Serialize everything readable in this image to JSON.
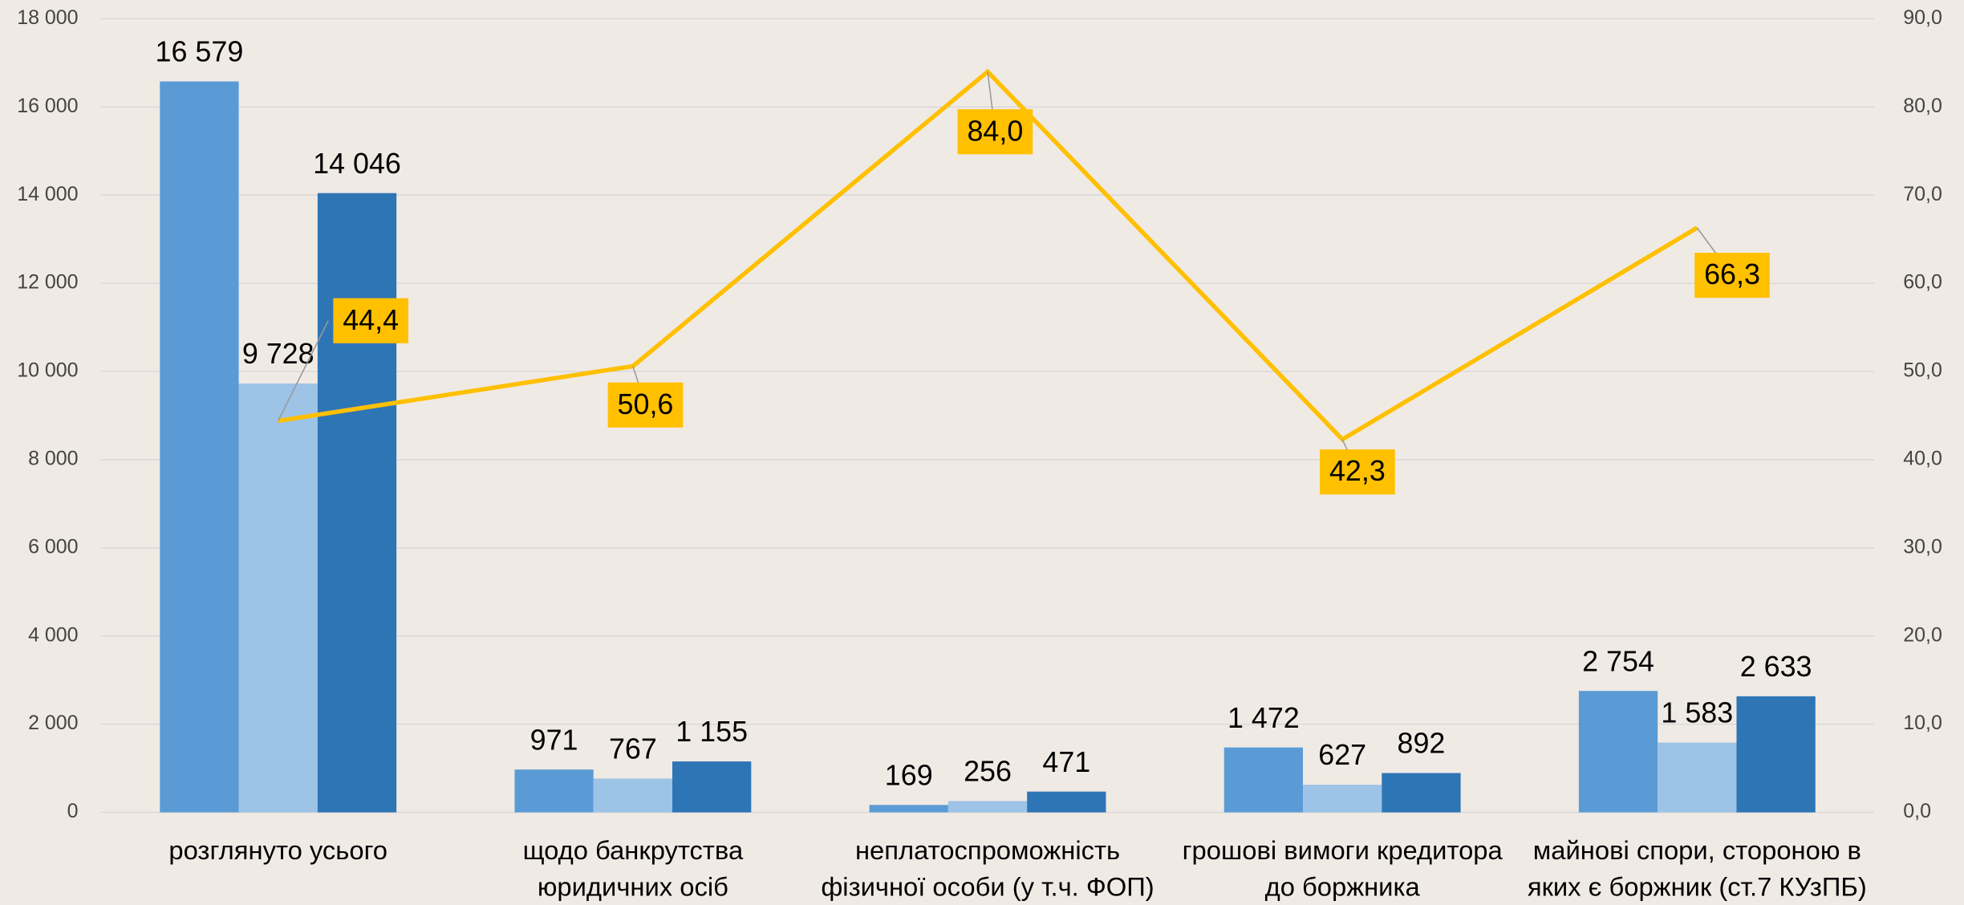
{
  "chart_data": {
    "type": "bar",
    "categories": [
      [
        "розглянуто усього"
      ],
      [
        "щодо банкрутства",
        "юридичних осіб"
      ],
      [
        "неплатоспроможність",
        "фізичної особи (у т.ч. ФОП)"
      ],
      [
        "грошові вимоги кредитора",
        "до боржника"
      ],
      [
        "майнові спори, стороною в",
        "яких є боржник (ст.7 КУзПБ)"
      ]
    ],
    "series": [
      {
        "color": "#5b9bd5",
        "values": [
          16579,
          971,
          169,
          1472,
          2754
        ],
        "value_labels": [
          "16 579",
          "971",
          "169",
          "1 472",
          "2 754"
        ]
      },
      {
        "color": "#9dc3e6",
        "values": [
          9728,
          767,
          256,
          627,
          1583
        ],
        "value_labels": [
          "9 728",
          "767",
          "256",
          "627",
          "1 583"
        ]
      },
      {
        "color": "#2e75b6",
        "values": [
          14046,
          1155,
          471,
          892,
          2633
        ],
        "value_labels": [
          "14 046",
          "1 155",
          "471",
          "892",
          "2 633"
        ]
      },
      {
        "type": "line",
        "axis": "y2",
        "color": "#ffc000",
        "values": [
          44.4,
          50.6,
          84.0,
          42.3,
          66.3
        ],
        "value_labels": [
          "44,4",
          "50,6",
          "84,0",
          "42,3",
          "66,3"
        ]
      }
    ],
    "ylim": [
      0,
      18000
    ],
    "yticks": [
      0,
      {
        "value": 2000,
        "label": "2 000"
      },
      {
        "value": 4000,
        "label": "4 000"
      },
      {
        "value": 6000,
        "label": "6 000"
      },
      {
        "value": 8000,
        "label": "8 000"
      },
      {
        "value": 10000,
        "label": "10 000"
      },
      {
        "value": 12000,
        "label": "12 000"
      },
      {
        "value": 14000,
        "label": "14 000"
      },
      {
        "value": 16000,
        "label": "16 000"
      },
      {
        "value": 18000,
        "label": "18 000"
      }
    ],
    "y2lim": [
      0,
      90
    ],
    "y2ticks": [
      {
        "value": 0,
        "label": "0,0"
      },
      {
        "value": 10,
        "label": "10,0"
      },
      {
        "value": 20,
        "label": "20,0"
      },
      {
        "value": 30,
        "label": "30,0"
      },
      {
        "value": 40,
        "label": "40,0"
      },
      {
        "value": 50,
        "label": "50,0"
      },
      {
        "value": 60,
        "label": "60,0"
      },
      {
        "value": 70,
        "label": "70,0"
      },
      {
        "value": 80,
        "label": "80,0"
      },
      {
        "value": 90,
        "label": "90,0"
      }
    ],
    "grid": true
  }
}
